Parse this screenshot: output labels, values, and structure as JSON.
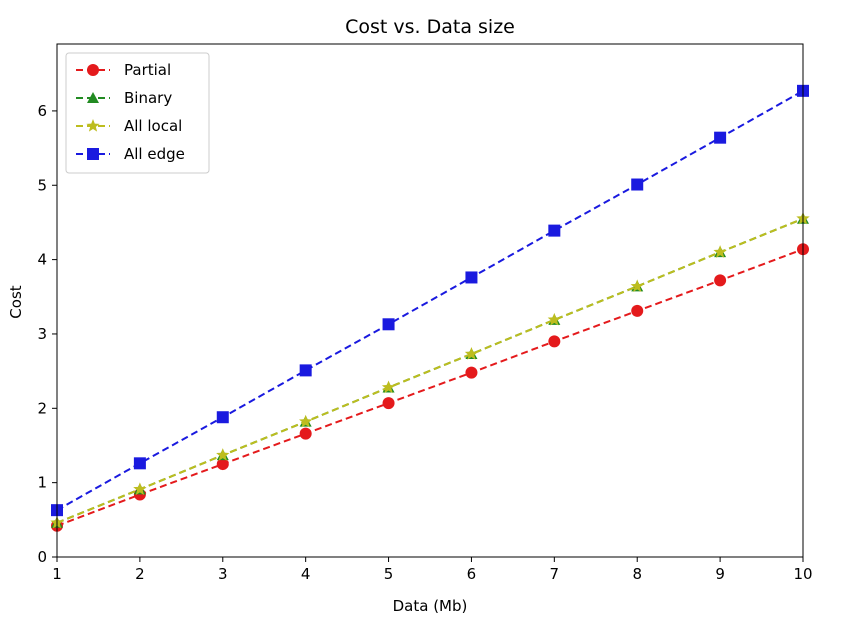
{
  "chart_data": {
    "type": "line",
    "title": "Cost vs. Data size",
    "xlabel": "Data (Mb)",
    "ylabel": "Cost",
    "xlim": [
      1,
      10
    ],
    "ylim": [
      0,
      6.9
    ],
    "xticks": [
      1,
      2,
      3,
      4,
      5,
      6,
      7,
      8,
      9,
      10
    ],
    "yticks": [
      0,
      1,
      2,
      3,
      4,
      5,
      6
    ],
    "grid": false,
    "legend_position": "top-left",
    "x": [
      1,
      2,
      3,
      4,
      5,
      6,
      7,
      8,
      9,
      10
    ],
    "series": [
      {
        "name": "Partial",
        "color": "#e41a1c",
        "marker": "circle",
        "linestyle": "dashed",
        "values": [
          0.42,
          0.84,
          1.25,
          1.66,
          2.07,
          2.48,
          2.9,
          3.31,
          3.72,
          4.14
        ]
      },
      {
        "name": "Binary",
        "color": "#228b22",
        "marker": "triangle",
        "linestyle": "dashed",
        "values": [
          0.46,
          0.91,
          1.37,
          1.82,
          2.28,
          2.73,
          3.19,
          3.64,
          4.1,
          4.55
        ]
      },
      {
        "name": "All local",
        "color": "#bdbd1f",
        "marker": "star",
        "linestyle": "dashed",
        "values": [
          0.46,
          0.91,
          1.37,
          1.82,
          2.28,
          2.73,
          3.19,
          3.64,
          4.1,
          4.55
        ]
      },
      {
        "name": "All edge",
        "color": "#1a1adf",
        "marker": "square",
        "linestyle": "dashed",
        "values": [
          0.63,
          1.26,
          1.88,
          2.51,
          3.13,
          3.76,
          4.39,
          5.01,
          5.64,
          6.27
        ]
      }
    ]
  }
}
